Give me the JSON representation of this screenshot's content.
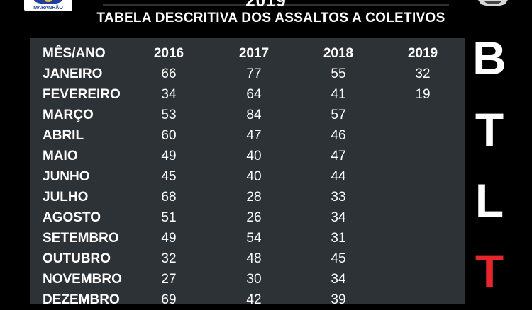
{
  "header": {
    "year": "2019",
    "logo_text": "MARANHÃO"
  },
  "chart_data": {
    "type": "table",
    "title": "TABELA DESCRITIVA DOS ASSALTOS A COLETIVOS",
    "row_header": "MÊS/ANO",
    "columns": [
      "2016",
      "2017",
      "2018",
      "2019"
    ],
    "rows": [
      {
        "month": "JANEIRO",
        "values": [
          "66",
          "77",
          "55",
          "32"
        ]
      },
      {
        "month": "FEVEREIRO",
        "values": [
          "34",
          "64",
          "41",
          "19"
        ]
      },
      {
        "month": "MARÇO",
        "values": [
          "53",
          "84",
          "57",
          ""
        ]
      },
      {
        "month": "ABRIL",
        "values": [
          "60",
          "47",
          "46",
          ""
        ]
      },
      {
        "month": "MAIO",
        "values": [
          "49",
          "40",
          "47",
          ""
        ]
      },
      {
        "month": "JUNHO",
        "values": [
          "45",
          "40",
          "44",
          ""
        ]
      },
      {
        "month": "JULHO",
        "values": [
          "68",
          "28",
          "33",
          ""
        ]
      },
      {
        "month": "AGOSTO",
        "values": [
          "51",
          "26",
          "34",
          ""
        ]
      },
      {
        "month": "SETEMBRO",
        "values": [
          "49",
          "54",
          "31",
          ""
        ]
      },
      {
        "month": "OUTUBRO",
        "values": [
          "32",
          "48",
          "45",
          ""
        ]
      },
      {
        "month": "NOVEMBRO",
        "values": [
          "27",
          "30",
          "34",
          ""
        ]
      },
      {
        "month": "DEZEMBRO",
        "values": [
          "69",
          "42",
          "39",
          ""
        ]
      }
    ]
  },
  "side_letters": [
    "B",
    "T",
    "L",
    "T"
  ],
  "colors": {
    "panel": "#2d3236",
    "accent": "#e6262a",
    "text": "#ffffff"
  }
}
